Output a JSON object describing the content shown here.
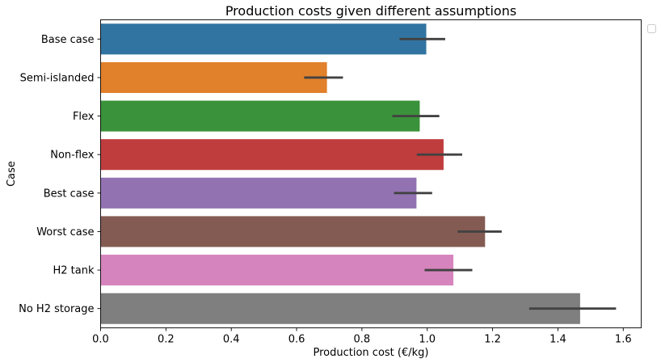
{
  "chart_data": {
    "type": "bar",
    "orientation": "horizontal",
    "title": "Production costs given different assumptions",
    "xlabel": "Production cost (€/kg)",
    "ylabel": "Case",
    "xlim": [
      0,
      1.655
    ],
    "xticks": [
      "0.0",
      "0.2",
      "0.4",
      "0.6",
      "0.8",
      "1.0",
      "1.2",
      "1.4",
      "1.6"
    ],
    "grid": false,
    "legend": "top-right",
    "categories": [
      "Base case",
      "Semi-islanded",
      "Flex",
      "Non-flex",
      "Best case",
      "Worst case",
      "H2 tank",
      "No H2 storage"
    ],
    "values": [
      0.997,
      0.693,
      0.977,
      1.05,
      0.967,
      1.177,
      1.08,
      1.468
    ],
    "error_low": [
      0.915,
      0.623,
      0.893,
      0.968,
      0.898,
      1.093,
      0.992,
      1.312
    ],
    "error_high": [
      1.055,
      0.742,
      1.037,
      1.107,
      1.015,
      1.228,
      1.138,
      1.578
    ],
    "colors": [
      "#3274a1",
      "#e1812c",
      "#3a923a",
      "#c03d3e",
      "#9372b2",
      "#845b53",
      "#d684bd",
      "#7f7f7f"
    ],
    "errorbar_color": "#424242"
  }
}
